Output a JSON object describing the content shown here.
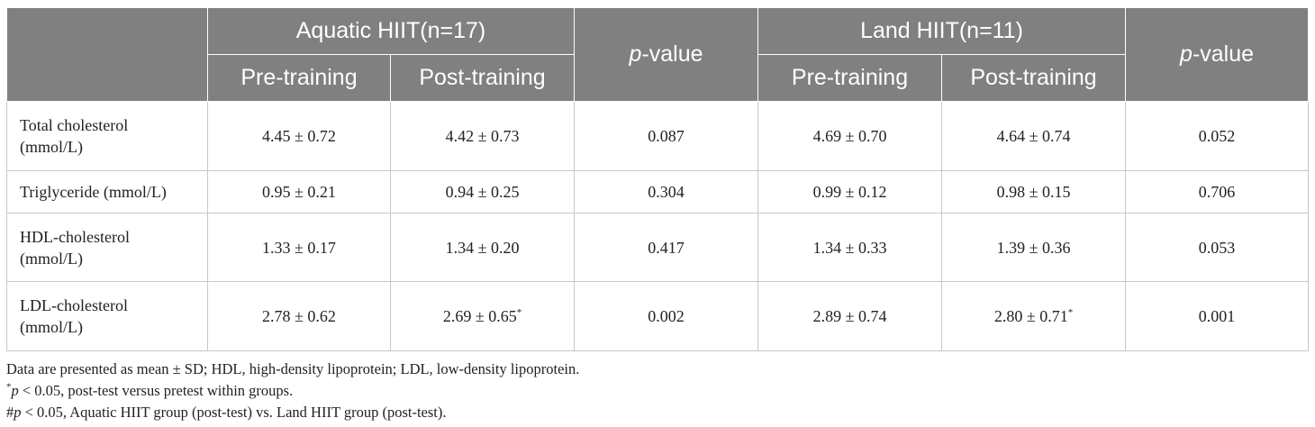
{
  "header": {
    "group1": "Aquatic HIIT(n=17)",
    "group2": "Land HIIT(n=11)",
    "pvalue_italic": "p",
    "pvalue_rest": "-value",
    "pre": "Pre-training",
    "post": "Post-training"
  },
  "rows": [
    {
      "label_line1": "Total cholesterol",
      "label_line2": "(mmol/L)",
      "aq_pre": "4.45 ± 0.72",
      "aq_post": "4.42 ± 0.73",
      "aq_post_mark": "",
      "aq_p": "0.087",
      "land_pre": "4.69 ± 0.70",
      "land_post": "4.64 ± 0.74",
      "land_post_mark": "",
      "land_p": "0.052"
    },
    {
      "label_line1": "Triglyceride (mmol/L)",
      "label_line2": "",
      "aq_pre": "0.95 ± 0.21",
      "aq_post": "0.94 ± 0.25",
      "aq_post_mark": "",
      "aq_p": "0.304",
      "land_pre": "0.99 ± 0.12",
      "land_post": "0.98 ± 0.15",
      "land_post_mark": "",
      "land_p": "0.706"
    },
    {
      "label_line1": "HDL-cholesterol",
      "label_line2": "(mmol/L)",
      "aq_pre": "1.33 ± 0.17",
      "aq_post": "1.34 ± 0.20",
      "aq_post_mark": "",
      "aq_p": "0.417",
      "land_pre": "1.34 ± 0.33",
      "land_post": "1.39 ± 0.36",
      "land_post_mark": "",
      "land_p": "0.053"
    },
    {
      "label_line1": "LDL-cholesterol",
      "label_line2": "(mmol/L)",
      "aq_pre": "2.78 ± 0.62",
      "aq_post": "2.69 ± 0.65",
      "aq_post_mark": "*",
      "aq_p": "0.002",
      "land_pre": "2.89 ± 0.74",
      "land_post": "2.80 ± 0.71",
      "land_post_mark": "*",
      "land_p": "0.001"
    }
  ],
  "notes": {
    "line1": "Data are presented as mean ± SD; HDL, high-density lipoprotein; LDL, low-density lipoprotein.",
    "line2_mark": "*",
    "line2_p": "p",
    "line2_rest": " < 0.05, post-test versus pretest within groups.",
    "line3_mark": "#",
    "line3_p": "p",
    "line3_rest": " < 0.05, Aquatic HIIT group (post-test) vs. Land HIIT group (post-test)."
  },
  "colors": {
    "header_bg": "#808080",
    "header_text": "#ffffff",
    "grid": "#c8c8c8"
  }
}
